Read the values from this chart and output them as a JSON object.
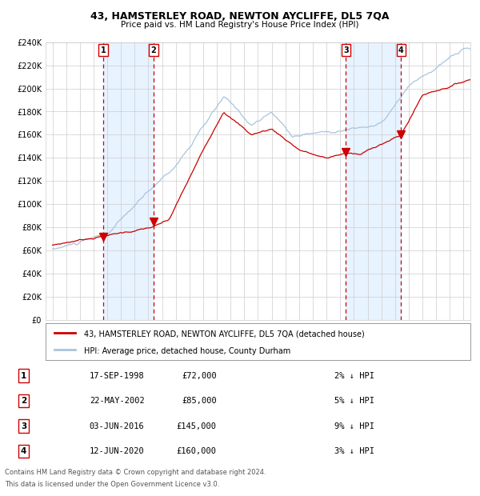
{
  "title1": "43, HAMSTERLEY ROAD, NEWTON AYCLIFFE, DL5 7QA",
  "title2": "Price paid vs. HM Land Registry's House Price Index (HPI)",
  "legend_line1": "43, HAMSTERLEY ROAD, NEWTON AYCLIFFE, DL5 7QA (detached house)",
  "legend_line2": "HPI: Average price, detached house, County Durham",
  "footer1": "Contains HM Land Registry data © Crown copyright and database right 2024.",
  "footer2": "This data is licensed under the Open Government Licence v3.0.",
  "sales": [
    {
      "num": 1,
      "date": "17-SEP-1998",
      "price": 72000,
      "pct": "2% ↓ HPI",
      "year": 1998.71
    },
    {
      "num": 2,
      "date": "22-MAY-2002",
      "price": 85000,
      "pct": "5% ↓ HPI",
      "year": 2002.38
    },
    {
      "num": 3,
      "date": "03-JUN-2016",
      "price": 145000,
      "pct": "9% ↓ HPI",
      "year": 2016.42
    },
    {
      "num": 4,
      "date": "12-JUN-2020",
      "price": 160000,
      "pct": "3% ↓ HPI",
      "year": 2020.44
    }
  ],
  "hpi_color": "#aac4dd",
  "price_color": "#cc0000",
  "dashed_color": "#cc0000",
  "shade_color": "#ddeeff",
  "background_color": "#ffffff",
  "grid_color": "#cccccc",
  "ylim": [
    0,
    240000
  ],
  "xlim_start": 1994.5,
  "xlim_end": 2025.5,
  "ytick_step": 20000
}
